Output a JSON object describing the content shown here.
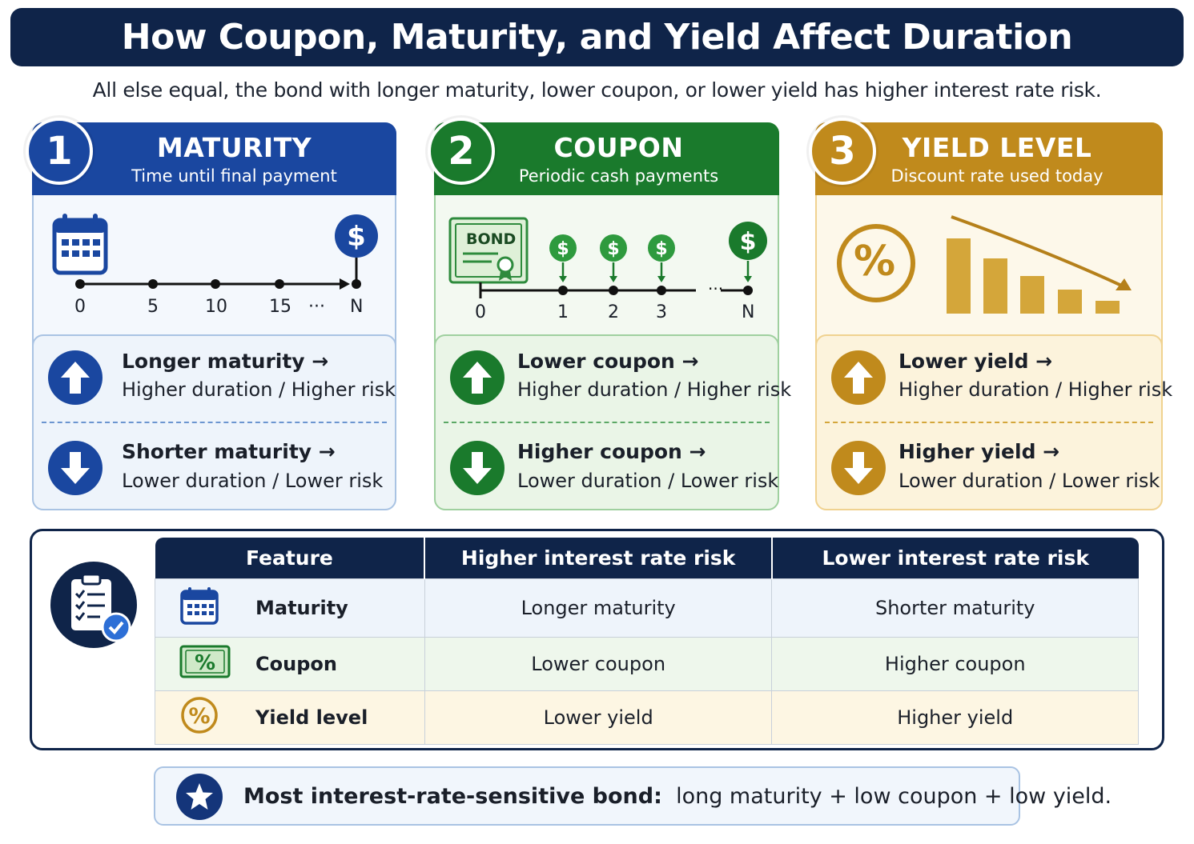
{
  "title": "How Coupon, Maturity, and Yield Affect Duration",
  "subtitle": "All else equal, the bond with longer maturity, lower coupon, or lower yield has higher interest rate risk.",
  "colors": {
    "navy": "#0f2449",
    "blue": "#1a47a0",
    "green": "#1a7a2c",
    "gold": "#c08a1c"
  },
  "cards": [
    {
      "number": "1",
      "heading": "MATURITY",
      "subheading": "Time until final payment",
      "icons": [
        "calendar-icon",
        "dollar-icon"
      ],
      "timeline_labels": [
        "0",
        "5",
        "10",
        "15",
        "···",
        "N"
      ],
      "up_line1": "Longer maturity →",
      "up_line2": "Higher duration / Higher risk",
      "down_line1": "Shorter maturity →",
      "down_line2": "Lower duration / Lower risk"
    },
    {
      "number": "2",
      "heading": "COUPON",
      "subheading": "Periodic cash payments",
      "bond_label": "BOND",
      "icons": [
        "bond-certificate-icon",
        "dollar-icon"
      ],
      "timeline_labels": [
        "0",
        "1",
        "2",
        "3",
        "N"
      ],
      "up_line1": "Lower coupon →",
      "up_line2": "Higher duration / Higher risk",
      "down_line1": "Higher coupon →",
      "down_line2": "Lower duration / Lower risk"
    },
    {
      "number": "3",
      "heading": "YIELD LEVEL",
      "subheading": "Discount rate used today",
      "percent_symbol": "%",
      "icons": [
        "percent-icon",
        "declining-bars-icon"
      ],
      "up_line1": "Lower yield →",
      "up_line2": "Higher duration / Higher risk",
      "down_line1": "Higher yield →",
      "down_line2": "Lower duration / Lower risk"
    }
  ],
  "table": {
    "headers": [
      "Feature",
      "Higher interest rate risk",
      "Lower interest rate risk"
    ],
    "rows": [
      {
        "feature": "Maturity",
        "icon": "calendar-icon",
        "higher": "Longer maturity",
        "lower": "Shorter maturity"
      },
      {
        "feature": "Coupon",
        "icon": "percent-bill-icon",
        "higher": "Lower coupon",
        "lower": "Higher coupon"
      },
      {
        "feature": "Yield level",
        "icon": "percent-circle-icon",
        "higher": "Lower yield",
        "lower": "Higher yield"
      }
    ]
  },
  "footer": {
    "bold": "Most interest-rate-sensitive bond:",
    "rest": "long maturity + low coupon + low yield."
  }
}
